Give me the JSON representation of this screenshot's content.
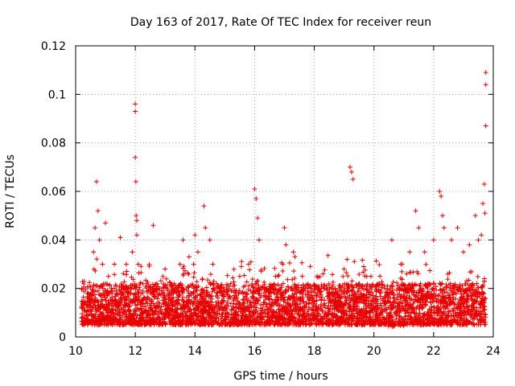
{
  "chart_data": {
    "type": "scatter",
    "title": "Day 163 of 2017, Rate Of TEC Index for receiver reun",
    "xlabel": "GPS time / hours",
    "ylabel": "ROTI / TECUs",
    "xlim": [
      10,
      24
    ],
    "ylim": [
      0,
      0.12
    ],
    "x_ticks": [
      10,
      12,
      14,
      16,
      18,
      20,
      22,
      24
    ],
    "y_ticks": [
      0,
      0.02,
      0.04,
      0.06,
      0.08,
      0.1,
      0.12
    ],
    "x_tick_labels": [
      "10",
      "12",
      "14",
      "16",
      "18",
      "20",
      "22",
      "24"
    ],
    "y_tick_labels": [
      "0",
      "0.02",
      "0.04",
      "0.06",
      "0.08",
      "0.1",
      "0.12"
    ],
    "grid": true,
    "marker": "+",
    "color": "#e80000",
    "series": [
      {
        "name": "ROTI",
        "x": [
          10.2,
          10.4,
          10.6,
          10.65,
          10.7,
          10.75,
          10.8,
          10.9,
          11.0,
          11.1,
          11.2,
          11.3,
          11.5,
          11.6,
          11.7,
          11.9,
          12.0,
          12.0,
          12.0,
          12.02,
          12.03,
          12.05,
          12.05,
          12.1,
          12.6,
          12.7,
          13.0,
          13.3,
          13.5,
          13.6,
          13.8,
          14.0,
          14.1,
          14.3,
          14.35,
          14.5,
          14.6,
          14.9,
          15.2,
          15.5,
          15.8,
          16.0,
          16.05,
          16.1,
          16.15,
          16.4,
          16.7,
          16.95,
          17.0,
          17.05,
          17.3,
          17.6,
          17.9,
          18.1,
          18.4,
          18.7,
          19.0,
          19.1,
          19.2,
          19.25,
          19.3,
          19.5,
          19.9,
          20.2,
          20.6,
          20.9,
          21.2,
          21.4,
          21.5,
          21.7,
          22.0,
          22.2,
          22.25,
          22.3,
          22.35,
          22.6,
          22.8,
          23.0,
          23.2,
          23.4,
          23.5,
          23.6,
          23.65,
          23.7,
          23.72,
          23.75,
          23.75,
          23.75
        ],
        "y": [
          0.012,
          0.018,
          0.035,
          0.045,
          0.064,
          0.052,
          0.04,
          0.03,
          0.047,
          0.025,
          0.02,
          0.03,
          0.041,
          0.02,
          0.03,
          0.035,
          0.096,
          0.093,
          0.074,
          0.064,
          0.05,
          0.048,
          0.042,
          0.03,
          0.046,
          0.02,
          0.028,
          0.022,
          0.03,
          0.04,
          0.033,
          0.042,
          0.035,
          0.054,
          0.045,
          0.04,
          0.03,
          0.02,
          0.022,
          0.025,
          0.03,
          0.061,
          0.057,
          0.049,
          0.04,
          0.02,
          0.025,
          0.03,
          0.045,
          0.038,
          0.035,
          0.025,
          0.02,
          0.018,
          0.02,
          0.02,
          0.028,
          0.032,
          0.07,
          0.068,
          0.065,
          0.02,
          0.025,
          0.025,
          0.04,
          0.03,
          0.035,
          0.052,
          0.045,
          0.035,
          0.04,
          0.06,
          0.058,
          0.05,
          0.045,
          0.04,
          0.045,
          0.035,
          0.038,
          0.05,
          0.04,
          0.042,
          0.055,
          0.063,
          0.051,
          0.109,
          0.104,
          0.087
        ],
        "baseline": {
          "x_range": [
            10.2,
            23.75
          ],
          "typical_min": 0.005,
          "typical_max": 0.022
        }
      }
    ]
  }
}
